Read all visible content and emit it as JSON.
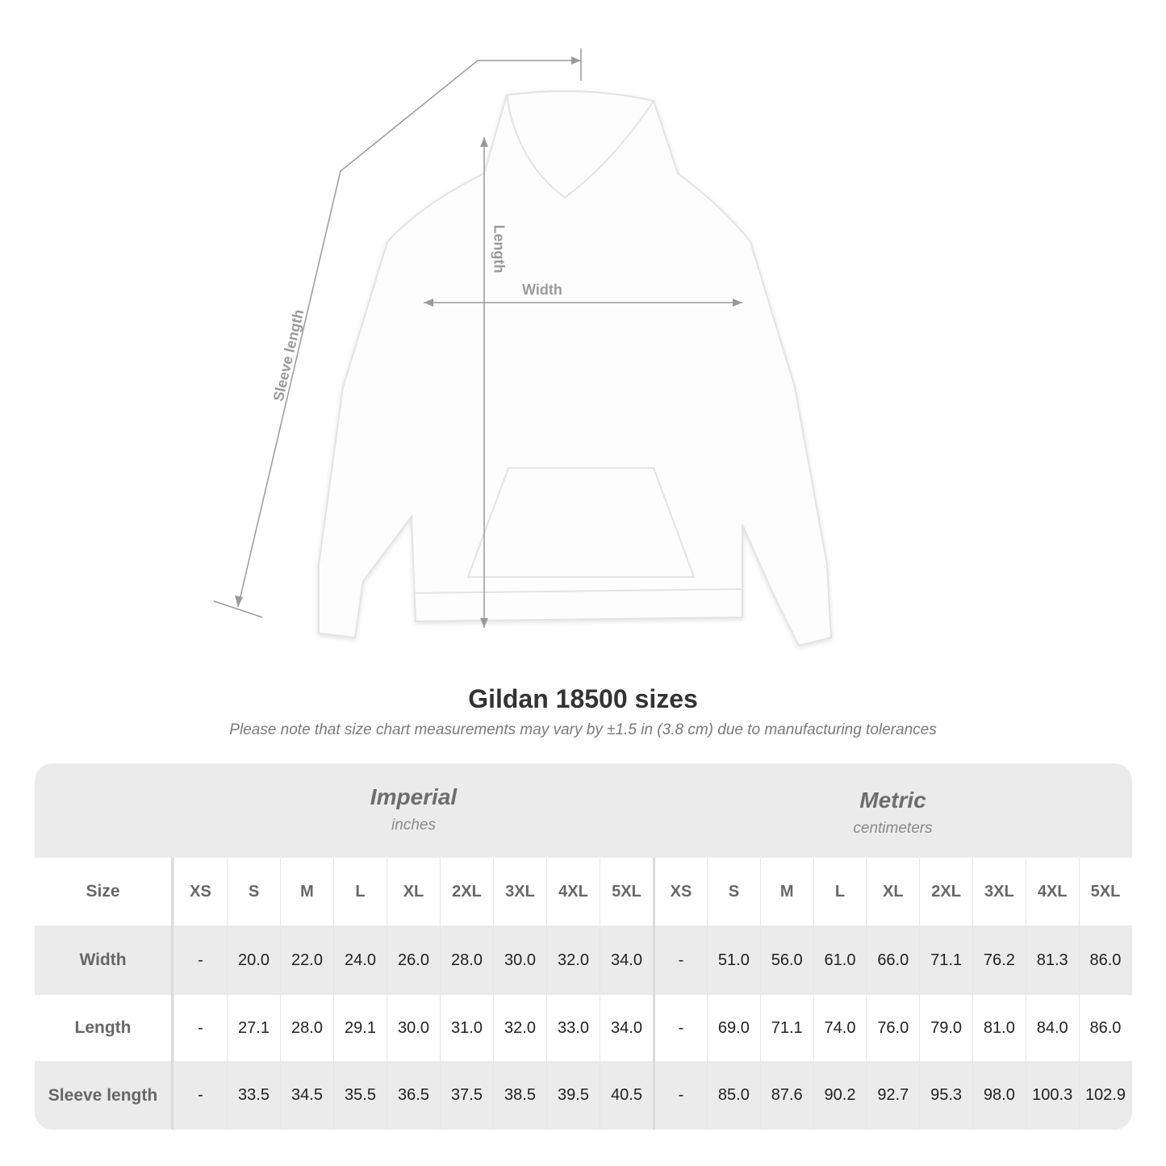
{
  "figure": {
    "measure_labels": {
      "sleeve": "Sleeve length",
      "length": "Length",
      "width": "Width"
    }
  },
  "title": "Gildan 18500 sizes",
  "subtitle": "Please note that size chart measurements may vary by ±1.5 in (3.8 cm) due to manufacturing tolerances",
  "table": {
    "imperial": {
      "title": "Imperial",
      "unit": "inches"
    },
    "metric": {
      "title": "Metric",
      "unit": "centimeters"
    },
    "size_label": "Size",
    "sizes": [
      "XS",
      "S",
      "M",
      "L",
      "XL",
      "2XL",
      "3XL",
      "4XL",
      "5XL"
    ],
    "rows": [
      {
        "label": "Width",
        "imperial": [
          "-",
          "20.0",
          "22.0",
          "24.0",
          "26.0",
          "28.0",
          "30.0",
          "32.0",
          "34.0"
        ],
        "metric": [
          "-",
          "51.0",
          "56.0",
          "61.0",
          "66.0",
          "71.1",
          "76.2",
          "81.3",
          "86.0"
        ]
      },
      {
        "label": "Length",
        "imperial": [
          "-",
          "27.1",
          "28.0",
          "29.1",
          "30.0",
          "31.0",
          "32.0",
          "33.0",
          "34.0"
        ],
        "metric": [
          "-",
          "69.0",
          "71.1",
          "74.0",
          "76.0",
          "79.0",
          "81.0",
          "84.0",
          "86.0"
        ]
      },
      {
        "label": "Sleeve length",
        "imperial": [
          "-",
          "33.5",
          "34.5",
          "35.5",
          "36.5",
          "37.5",
          "38.5",
          "39.5",
          "40.5"
        ],
        "metric": [
          "-",
          "85.0",
          "87.6",
          "90.2",
          "92.7",
          "95.3",
          "98.0",
          "100.3",
          "102.9"
        ]
      }
    ]
  },
  "colors": {
    "band": "#ebebeb",
    "measure_line": "#9a9a9a",
    "title": "#333333"
  }
}
